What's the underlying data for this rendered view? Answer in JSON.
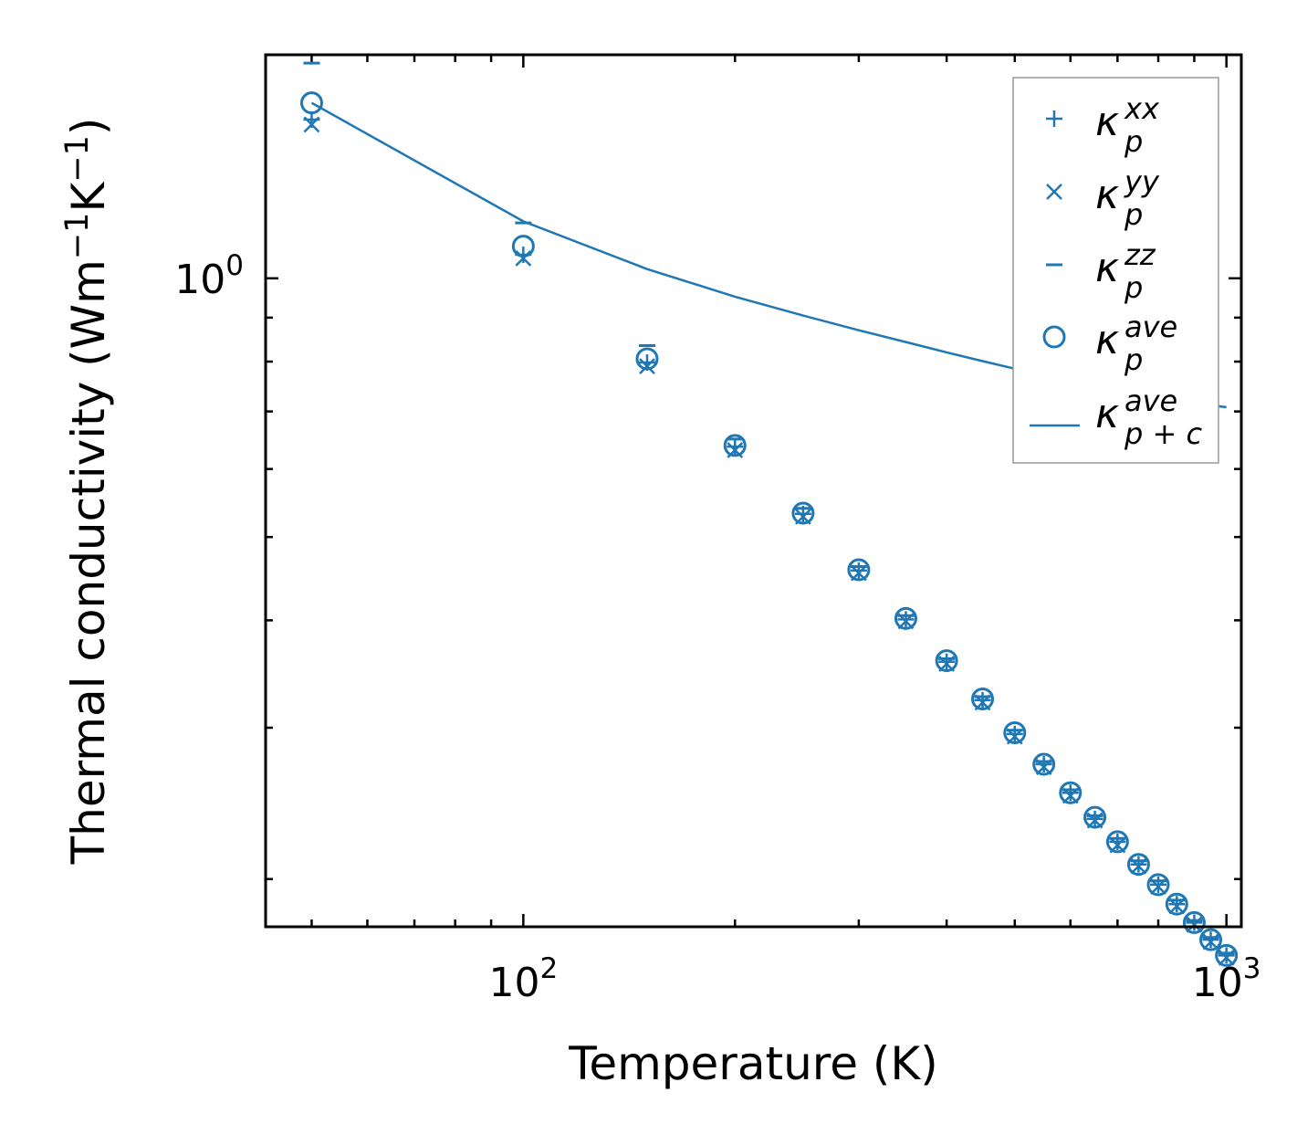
{
  "chart_data": {
    "type": "scatter",
    "title": "",
    "xlabel": "Temperature (K)",
    "ylabel": "Thermal conductivity (Wm",
    "ylabel_sup1": "−1",
    "ylabel_mid": "K",
    "ylabel_sup2": "−1",
    "ylabel_end": ")",
    "xscale": "log",
    "yscale": "log",
    "xlim": [
      43,
      1050
    ],
    "ylim": [
      0.176,
      1.82
    ],
    "xticks": [
      {
        "value": 100,
        "base": "10",
        "exp": "2"
      },
      {
        "value": 1000,
        "base": "10",
        "exp": "3"
      }
    ],
    "yticks": [
      {
        "value": 1.0,
        "base": "10",
        "exp": "0"
      }
    ],
    "x": [
      50,
      100,
      150,
      200,
      250,
      300,
      350,
      400,
      450,
      500,
      550,
      600,
      650,
      700,
      750,
      800,
      850,
      900,
      950,
      1000
    ],
    "series": [
      {
        "name": "kxx",
        "marker": "plus",
        "values": [
          1.53,
          1.065,
          0.798,
          0.637,
          0.532,
          0.457,
          0.401,
          0.358,
          0.323,
          0.295,
          0.272,
          0.252,
          0.235,
          0.221,
          0.208,
          0.197,
          0.187,
          0.178,
          0.17,
          0.163
        ]
      },
      {
        "name": "kyy",
        "marker": "x",
        "values": [
          1.51,
          1.055,
          0.79,
          0.631,
          0.528,
          0.454,
          0.399,
          0.356,
          0.321,
          0.293,
          0.27,
          0.25,
          0.234,
          0.219,
          0.207,
          0.196,
          0.186,
          0.177,
          0.169,
          0.162
        ]
      },
      {
        "name": "kzz",
        "marker": "hline",
        "values": [
          1.78,
          1.16,
          0.835,
          0.65,
          0.54,
          0.462,
          0.405,
          0.361,
          0.326,
          0.298,
          0.274,
          0.254,
          0.237,
          0.223,
          0.21,
          0.199,
          0.189,
          0.179,
          0.171,
          0.164
        ]
      },
      {
        "name": "kave",
        "marker": "circle",
        "values": [
          1.6,
          1.09,
          0.806,
          0.639,
          0.533,
          0.458,
          0.402,
          0.359,
          0.324,
          0.296,
          0.272,
          0.252,
          0.236,
          0.221,
          0.208,
          0.197,
          0.187,
          0.178,
          0.17,
          0.163
        ]
      },
      {
        "name": "kave_pc",
        "marker": "line",
        "values": [
          1.6,
          1.165,
          1.025,
          0.952,
          0.905,
          0.87,
          0.843,
          0.82,
          0.801,
          0.785,
          0.771,
          0.759,
          0.749,
          0.74,
          0.733,
          0.727,
          0.721,
          0.716,
          0.712,
          0.708
        ]
      }
    ],
    "legend": {
      "location": "top-right",
      "entries": [
        {
          "marker": "plus",
          "base": "κ",
          "sub": "p",
          "sup": "xx"
        },
        {
          "marker": "x",
          "base": "κ",
          "sub": "p",
          "sup": "yy"
        },
        {
          "marker": "hline",
          "base": "κ",
          "sub": "p",
          "sup": "zz"
        },
        {
          "marker": "circle",
          "base": "κ",
          "sub": "p",
          "sup": "ave"
        },
        {
          "marker": "line",
          "base": "κ",
          "sub": "p + c",
          "sup": "ave"
        }
      ]
    },
    "color": "#1f77b4",
    "grid": false
  }
}
